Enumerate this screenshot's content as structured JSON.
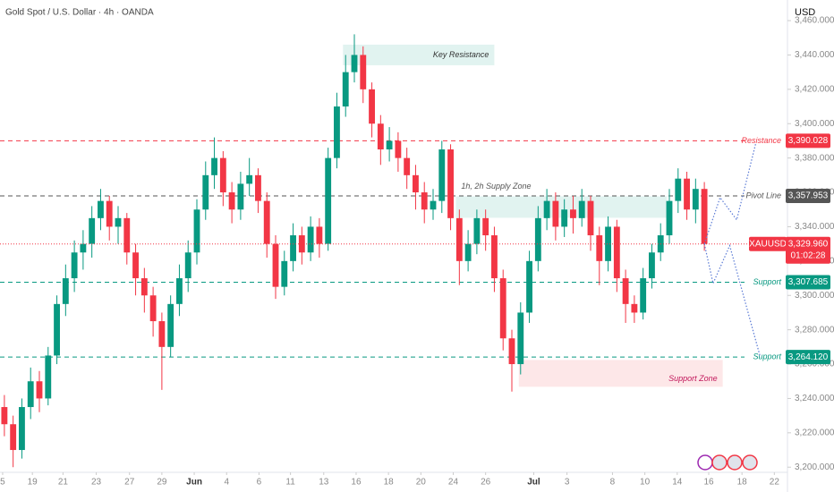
{
  "chart_data": {
    "type": "candlestick",
    "title": "Gold Spot / U.S. Dollar · 4h · OANDA",
    "y_axis_label": "USD",
    "up_color": "#089981",
    "down_color": "#f23645",
    "open": [
      3235,
      3225,
      3210,
      3235,
      3250,
      3240,
      3265,
      3295,
      3310,
      3325,
      3330,
      3345,
      3355,
      3340,
      3345,
      3325,
      3310,
      3300,
      3285,
      3270,
      3295,
      3310,
      3325,
      3350,
      3370,
      3380,
      3360,
      3350,
      3365,
      3370,
      3355,
      3330,
      3305,
      3320,
      3335,
      3325,
      3340,
      3330,
      3380,
      3410,
      3430,
      3440,
      3420,
      3400,
      3385,
      3390,
      3380,
      3370,
      3360,
      3350,
      3355,
      3385,
      3345,
      3320,
      3330,
      3345,
      3335,
      3310,
      3275,
      3260,
      3290,
      3320,
      3345,
      3355,
      3340,
      3350,
      3345,
      3355,
      3335,
      3320,
      3340,
      3310,
      3295,
      3290,
      3310,
      3325,
      3335,
      3355,
      3368,
      3350,
      3362
    ],
    "high": [
      3242,
      3230,
      3240,
      3258,
      3256,
      3270,
      3300,
      3318,
      3332,
      3338,
      3352,
      3362,
      3358,
      3352,
      3348,
      3330,
      3316,
      3305,
      3290,
      3300,
      3318,
      3332,
      3356,
      3378,
      3392,
      3384,
      3366,
      3372,
      3380,
      3374,
      3360,
      3335,
      3326,
      3342,
      3340,
      3346,
      3345,
      3386,
      3418,
      3440,
      3452,
      3445,
      3424,
      3405,
      3398,
      3395,
      3386,
      3376,
      3366,
      3362,
      3390,
      3388,
      3350,
      3338,
      3350,
      3350,
      3340,
      3315,
      3280,
      3296,
      3326,
      3352,
      3362,
      3360,
      3356,
      3358,
      3362,
      3358,
      3340,
      3346,
      3344,
      3315,
      3300,
      3316,
      3330,
      3342,
      3362,
      3374,
      3372,
      3368,
      3366
    ],
    "low": [
      3218,
      3200,
      3205,
      3228,
      3232,
      3236,
      3260,
      3288,
      3302,
      3315,
      3322,
      3338,
      3332,
      3330,
      3318,
      3300,
      3290,
      3276,
      3245,
      3264,
      3288,
      3302,
      3318,
      3344,
      3362,
      3352,
      3342,
      3344,
      3358,
      3348,
      3322,
      3298,
      3300,
      3314,
      3318,
      3320,
      3322,
      3326,
      3374,
      3404,
      3424,
      3412,
      3392,
      3376,
      3378,
      3372,
      3362,
      3350,
      3342,
      3344,
      3348,
      3338,
      3306,
      3314,
      3324,
      3326,
      3302,
      3268,
      3244,
      3254,
      3284,
      3314,
      3338,
      3332,
      3334,
      3336,
      3340,
      3326,
      3306,
      3314,
      3302,
      3284,
      3284,
      3286,
      3304,
      3320,
      3330,
      3348,
      3344,
      3342,
      3326
    ],
    "close": [
      3225,
      3210,
      3235,
      3250,
      3240,
      3265,
      3295,
      3310,
      3325,
      3330,
      3345,
      3355,
      3340,
      3345,
      3325,
      3310,
      3300,
      3285,
      3270,
      3295,
      3310,
      3325,
      3350,
      3370,
      3380,
      3360,
      3350,
      3365,
      3370,
      3355,
      3330,
      3305,
      3320,
      3335,
      3325,
      3340,
      3330,
      3380,
      3410,
      3430,
      3440,
      3420,
      3400,
      3385,
      3390,
      3380,
      3370,
      3360,
      3350,
      3355,
      3385,
      3345,
      3320,
      3330,
      3345,
      3335,
      3310,
      3275,
      3260,
      3290,
      3320,
      3345,
      3355,
      3340,
      3350,
      3345,
      3355,
      3335,
      3320,
      3340,
      3310,
      3295,
      3290,
      3310,
      3325,
      3335,
      3355,
      3368,
      3350,
      3362,
      3329.96
    ],
    "xlim": [
      -0.5,
      89.5
    ],
    "xticks": [
      {
        "value": -0.2,
        "label": "5"
      },
      {
        "value": 3.2,
        "label": "19"
      },
      {
        "value": 6.7,
        "label": "21"
      },
      {
        "value": 10.5,
        "label": "23"
      },
      {
        "value": 14.3,
        "label": "27"
      },
      {
        "value": 18.0,
        "label": "29"
      },
      {
        "value": 21.7,
        "label": "Jun"
      },
      {
        "value": 25.4,
        "label": "4"
      },
      {
        "value": 29.1,
        "label": "6"
      },
      {
        "value": 32.7,
        "label": "11"
      },
      {
        "value": 36.5,
        "label": "13"
      },
      {
        "value": 40.2,
        "label": "16"
      },
      {
        "value": 43.9,
        "label": "18"
      },
      {
        "value": 47.6,
        "label": "20"
      },
      {
        "value": 51.3,
        "label": "24"
      },
      {
        "value": 55.0,
        "label": "26"
      },
      {
        "value": 60.5,
        "label": "Jul"
      },
      {
        "value": 64.3,
        "label": "3"
      },
      {
        "value": 69.5,
        "label": "8"
      },
      {
        "value": 73.2,
        "label": "10"
      },
      {
        "value": 76.9,
        "label": "14"
      },
      {
        "value": 80.5,
        "label": "16"
      },
      {
        "value": 84.3,
        "label": "18"
      },
      {
        "value": 88.0,
        "label": "22"
      }
    ],
    "ylim": [
      3197,
      3472
    ],
    "yticks": [
      {
        "value": 3200,
        "label": "3,200.000"
      },
      {
        "value": 3220,
        "label": "3,220.000"
      },
      {
        "value": 3240,
        "label": "3,240.000"
      },
      {
        "value": 3260,
        "label": "3,260.000"
      },
      {
        "value": 3280,
        "label": "3,280.000"
      },
      {
        "value": 3300,
        "label": "3,300.000"
      },
      {
        "value": 3320,
        "label": "3,320.000"
      },
      {
        "value": 3340,
        "label": "3,340.000"
      },
      {
        "value": 3360,
        "label": "3,360.000"
      },
      {
        "value": 3380,
        "label": "3,380.000"
      },
      {
        "value": 3400,
        "label": "3,400.000"
      },
      {
        "value": 3420,
        "label": "3,420.000"
      },
      {
        "value": 3440,
        "label": "3,440.000"
      },
      {
        "value": 3460,
        "label": "3,460.000"
      }
    ],
    "levels": [
      {
        "name": "Resistance",
        "value": 3390.028,
        "label": "3,390.028",
        "color": "#f23645"
      },
      {
        "name": "Pivot Line",
        "value": 3357.953,
        "label": "3,357.953",
        "color": "#555555"
      },
      {
        "name": "Support",
        "value": 3307.685,
        "label": "3,307.685",
        "color": "#089981"
      },
      {
        "name": "Support",
        "value": 3264.12,
        "label": "3,264.120",
        "color": "#089981"
      }
    ],
    "last_price": {
      "symbol": "XAUUSD",
      "value": 3329.96,
      "label": "3,329.960",
      "countdown": "01:02:28",
      "color": "#f23645"
    },
    "zones": [
      {
        "label": "Key Resistance",
        "x": [
          38.7,
          56.0
        ],
        "y": [
          3434,
          3446
        ],
        "color": "#089981"
      },
      {
        "label": "1h, 2h Supply Zone",
        "x": [
          51.6,
          75.7
        ],
        "y": [
          3345.2,
          3357.7
        ],
        "color": "#089981"
      },
      {
        "label": "Support Zone",
        "x": [
          58.8,
          82.1
        ],
        "y": [
          3246.8,
          3262.4
        ],
        "color": "#f23645"
      }
    ],
    "projections": [
      {
        "x": [
          80,
          81.8,
          83.7,
          85.9
        ],
        "y": [
          3330,
          3357,
          3344,
          3389
        ]
      },
      {
        "x": [
          80,
          81,
          82.9,
          86.4
        ],
        "y": [
          3330,
          3307,
          3329,
          3264
        ]
      }
    ],
    "grid": false
  }
}
